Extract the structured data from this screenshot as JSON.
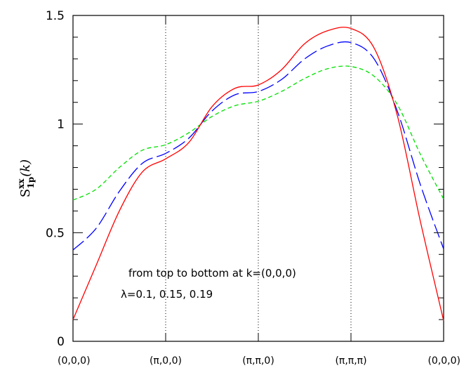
{
  "chart_data": {
    "type": "line",
    "ylabel_base": "S",
    "ylabel_sub": "1p",
    "ylabel_sup": "xx",
    "ylabel_arg": "(k)",
    "ylim": [
      0,
      1.5
    ],
    "y_ticks": [
      {
        "value": 0,
        "label": "0"
      },
      {
        "value": 0.5,
        "label": "0.5"
      },
      {
        "value": 1,
        "label": "1"
      },
      {
        "value": 1.5,
        "label": "1.5"
      }
    ],
    "xlim": [
      0,
      4
    ],
    "x_ticks": [
      {
        "value": 0,
        "label": "(0,0,0)"
      },
      {
        "value": 1,
        "label": "(π,0,0)"
      },
      {
        "value": 2,
        "label": "(π,π,0)"
      },
      {
        "value": 3,
        "label": "(π,π,π)"
      },
      {
        "value": 4,
        "label": "(0,0,0)"
      }
    ],
    "vlines": [
      1,
      2,
      3
    ],
    "annotations": [
      "from top to bottom at k=(0,0,0)",
      "λ=0.1, 0.15, 0.19"
    ],
    "series": [
      {
        "color": "#00e000",
        "dash": "6,4",
        "points": [
          [
            0,
            0.65
          ],
          [
            0.25,
            0.7
          ],
          [
            0.5,
            0.8
          ],
          [
            0.75,
            0.88
          ],
          [
            1,
            0.905
          ],
          [
            1.25,
            0.96
          ],
          [
            1.5,
            1.035
          ],
          [
            1.75,
            1.085
          ],
          [
            2,
            1.105
          ],
          [
            2.25,
            1.15
          ],
          [
            2.5,
            1.21
          ],
          [
            2.75,
            1.255
          ],
          [
            3,
            1.265
          ],
          [
            3.25,
            1.22
          ],
          [
            3.5,
            1.09
          ],
          [
            3.75,
            0.86
          ],
          [
            4,
            0.655
          ]
        ]
      },
      {
        "color": "#0000ff",
        "dash": "20,6",
        "points": [
          [
            0,
            0.42
          ],
          [
            0.25,
            0.52
          ],
          [
            0.5,
            0.69
          ],
          [
            0.75,
            0.82
          ],
          [
            1,
            0.865
          ],
          [
            1.25,
            0.935
          ],
          [
            1.5,
            1.06
          ],
          [
            1.75,
            1.135
          ],
          [
            2,
            1.15
          ],
          [
            2.25,
            1.205
          ],
          [
            2.5,
            1.3
          ],
          [
            2.75,
            1.36
          ],
          [
            3,
            1.375
          ],
          [
            3.25,
            1.3
          ],
          [
            3.5,
            1.06
          ],
          [
            3.75,
            0.72
          ],
          [
            4,
            0.425
          ]
        ]
      },
      {
        "color": "#ff0000",
        "dash": "",
        "points": [
          [
            0,
            0.1
          ],
          [
            0.25,
            0.35
          ],
          [
            0.5,
            0.6
          ],
          [
            0.75,
            0.78
          ],
          [
            1,
            0.84
          ],
          [
            1.25,
            0.915
          ],
          [
            1.5,
            1.08
          ],
          [
            1.75,
            1.165
          ],
          [
            2,
            1.18
          ],
          [
            2.25,
            1.25
          ],
          [
            2.5,
            1.37
          ],
          [
            2.75,
            1.43
          ],
          [
            3,
            1.44
          ],
          [
            3.25,
            1.35
          ],
          [
            3.5,
            1.04
          ],
          [
            3.75,
            0.55
          ],
          [
            4,
            0.095
          ]
        ]
      }
    ]
  }
}
